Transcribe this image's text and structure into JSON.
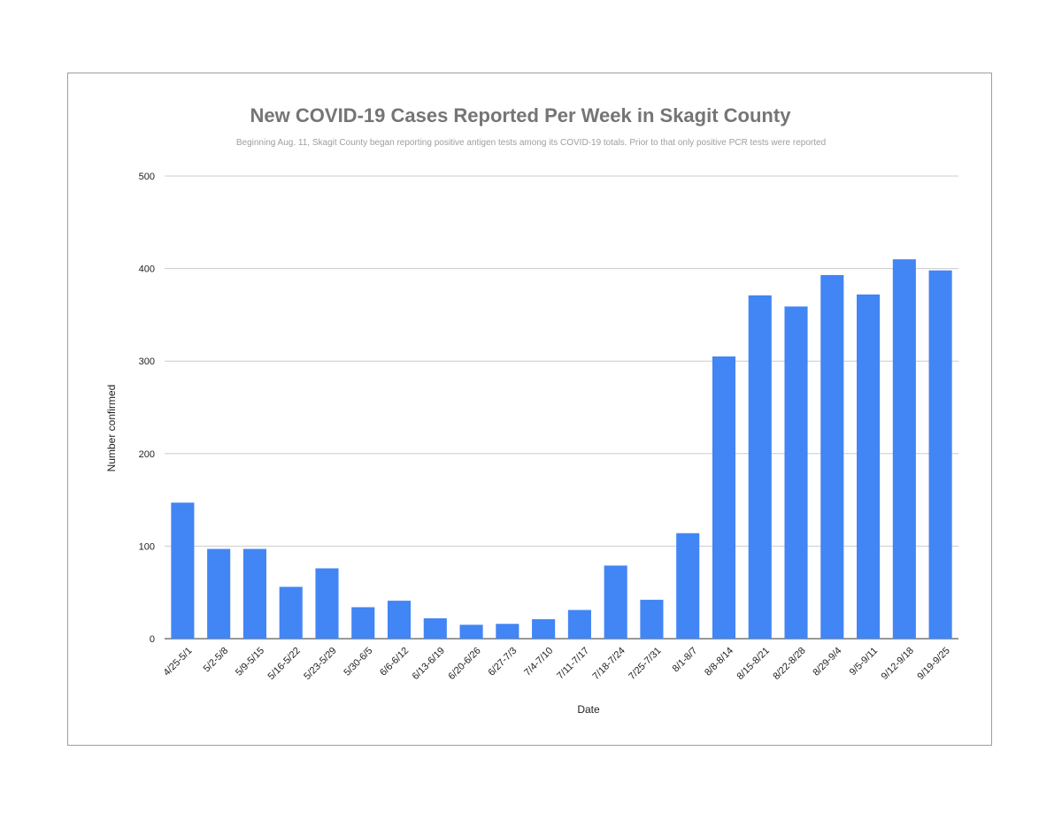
{
  "chart_data": {
    "type": "bar",
    "title": "New COVID-19 Cases Reported Per Week in Skagit County",
    "subtitle": "Beginning Aug. 11, Skagit County began reporting positive antigen tests among its COVID-19 totals. Prior to that only positive PCR tests were reported",
    "xlabel": "Date",
    "ylabel": "Number confirmed",
    "ylim": [
      0,
      500
    ],
    "yticks": [
      0,
      100,
      200,
      300,
      400,
      500
    ],
    "grid": true,
    "bar_color": "#4285f4",
    "categories": [
      "4/25-5/1",
      "5/2-5/8",
      "5/9-5/15",
      "5/16-5/22",
      "5/23-5/29",
      "5/30-6/5",
      "6/6-6/12",
      "6/13-6/19",
      "6/20-6/26",
      "6/27-7/3",
      "7/4-7/10",
      "7/11-7/17",
      "7/18-7/24",
      "7/25-7/31",
      "8/1-8/7",
      "8/8-8/14",
      "8/15-8/21",
      "8/22-8/28",
      "8/29-9/4",
      "9/5-9/11",
      "9/12-9/18",
      "9/19-9/25"
    ],
    "values": [
      147,
      97,
      97,
      56,
      76,
      34,
      41,
      22,
      15,
      16,
      21,
      31,
      79,
      42,
      114,
      305,
      371,
      359,
      393,
      372,
      410,
      398
    ]
  }
}
